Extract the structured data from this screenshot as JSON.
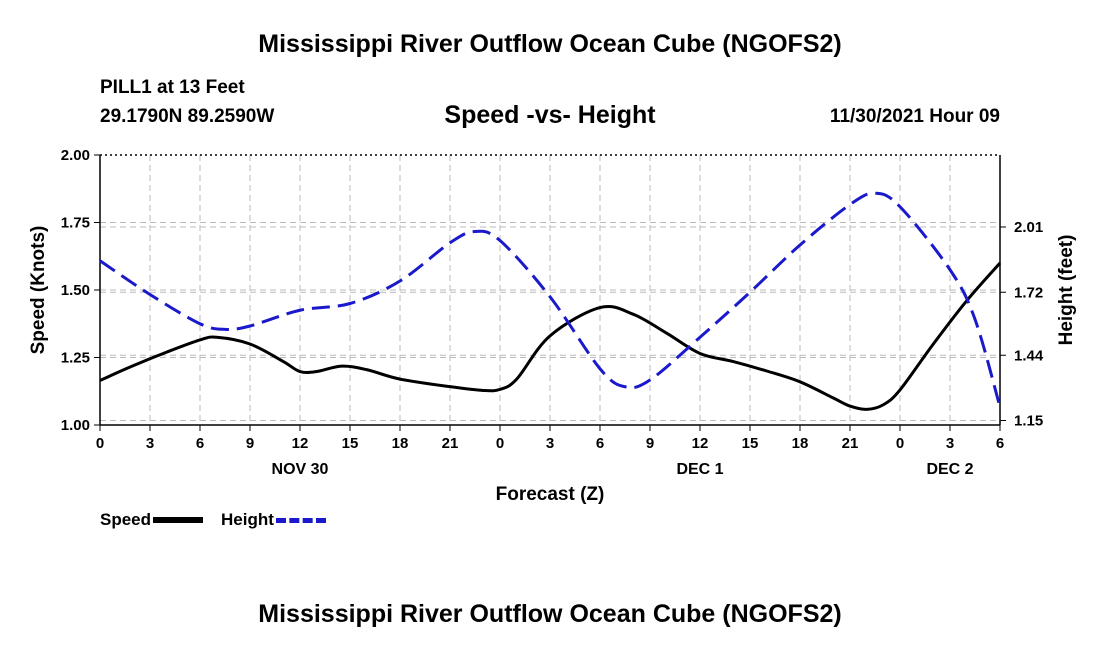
{
  "header": {
    "title": "Mississippi River Outflow Ocean Cube (NGOFS2)",
    "station": "PILL1 at 13 Feet",
    "coords": "29.1790N  89.2590W",
    "subtitle": "Speed -vs- Height",
    "timestamp": "11/30/2021 Hour 09"
  },
  "footer": {
    "title": "Mississippi River Outflow Ocean Cube (NGOFS2)"
  },
  "legend": {
    "speed_label": "Speed",
    "height_label": "Height"
  },
  "colors": {
    "speed": "#000000",
    "height": "#1a1acc",
    "grid": "#bbbbbb"
  },
  "chart_data": {
    "type": "line",
    "title": "Speed -vs- Height",
    "xlabel": "Forecast (Z)",
    "ylabel": "Speed (Knots)",
    "y2label": "Height (feet)",
    "xlim": [
      0,
      54
    ],
    "ylim": [
      1.0,
      2.0
    ],
    "y2lim": [
      1.13,
      2.33
    ],
    "x_ticks": [
      0,
      3,
      6,
      9,
      12,
      15,
      18,
      21,
      24,
      27,
      30,
      33,
      36,
      39,
      42,
      45,
      48,
      51,
      54
    ],
    "x_tick_labels": [
      "0",
      "3",
      "6",
      "9",
      "12",
      "15",
      "18",
      "21",
      "0",
      "3",
      "6",
      "9",
      "12",
      "15",
      "18",
      "21",
      "0",
      "3",
      "6"
    ],
    "date_labels": [
      {
        "x": 12,
        "label": "NOV 30"
      },
      {
        "x": 36,
        "label": "DEC 1"
      },
      {
        "x": 51,
        "label": "DEC 2"
      }
    ],
    "y_ticks": [
      1.0,
      1.25,
      1.5,
      1.75,
      2.0
    ],
    "y_tick_labels": [
      "1.00",
      "1.25",
      "1.50",
      "1.75",
      "2.00"
    ],
    "y2_ticks": [
      1.15,
      1.44,
      1.72,
      2.01
    ],
    "y2_tick_labels": [
      "1.15",
      "1.44",
      "1.72",
      "2.01"
    ],
    "grid": true,
    "series": [
      {
        "name": "Speed",
        "axis": "left",
        "style": "solid",
        "x": [
          0,
          2,
          4,
          6,
          7,
          9,
          11,
          12,
          13,
          14.5,
          16,
          18,
          21,
          23,
          24,
          25,
          27,
          30,
          32,
          34,
          36,
          38,
          40,
          42,
          44,
          45,
          46,
          47,
          48,
          50,
          52,
          54
        ],
        "values": [
          1.165,
          1.22,
          1.27,
          1.315,
          1.325,
          1.3,
          1.235,
          1.198,
          1.198,
          1.218,
          1.205,
          1.17,
          1.142,
          1.128,
          1.132,
          1.17,
          1.33,
          1.435,
          1.41,
          1.34,
          1.265,
          1.235,
          1.2,
          1.16,
          1.1,
          1.07,
          1.058,
          1.075,
          1.13,
          1.3,
          1.46,
          1.6
        ]
      },
      {
        "name": "Height",
        "axis": "right",
        "style": "dashed",
        "x": [
          0,
          3,
          6,
          7.5,
          9,
          12,
          15,
          18,
          21,
          22.5,
          24,
          27,
          30,
          31.5,
          33,
          36,
          39,
          42,
          45,
          46.5,
          48,
          51,
          52.5,
          54
        ],
        "values": [
          1.86,
          1.71,
          1.58,
          1.555,
          1.57,
          1.64,
          1.67,
          1.77,
          1.94,
          1.99,
          1.95,
          1.7,
          1.38,
          1.3,
          1.33,
          1.52,
          1.72,
          1.93,
          2.11,
          2.16,
          2.1,
          1.82,
          1.6,
          1.21
        ]
      }
    ]
  }
}
